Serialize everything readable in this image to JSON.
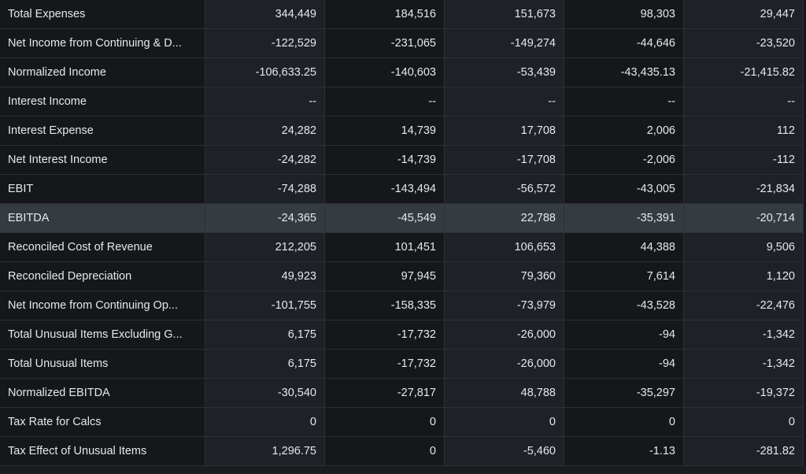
{
  "highlight_color": "#353c41",
  "rows": [
    {
      "label": "Total Expenses",
      "values": [
        "344,449",
        "184,516",
        "151,673",
        "98,303",
        "29,447"
      ]
    },
    {
      "label": "Net Income from Continuing & D...",
      "values": [
        "-122,529",
        "-231,065",
        "-149,274",
        "-44,646",
        "-23,520"
      ]
    },
    {
      "label": "Normalized Income",
      "values": [
        "-106,633.25",
        "-140,603",
        "-53,439",
        "-43,435.13",
        "-21,415.82"
      ]
    },
    {
      "label": "Interest Income",
      "values": [
        "--",
        "--",
        "--",
        "--",
        "--"
      ]
    },
    {
      "label": "Interest Expense",
      "values": [
        "24,282",
        "14,739",
        "17,708",
        "2,006",
        "112"
      ]
    },
    {
      "label": "Net Interest Income",
      "values": [
        "-24,282",
        "-14,739",
        "-17,708",
        "-2,006",
        "-112"
      ]
    },
    {
      "label": "EBIT",
      "values": [
        "-74,288",
        "-143,494",
        "-56,572",
        "-43,005",
        "-21,834"
      ]
    },
    {
      "label": "EBITDA",
      "values": [
        "-24,365",
        "-45,549",
        "22,788",
        "-35,391",
        "-20,714"
      ],
      "highlighted": true
    },
    {
      "label": "Reconciled Cost of Revenue",
      "values": [
        "212,205",
        "101,451",
        "106,653",
        "44,388",
        "9,506"
      ]
    },
    {
      "label": "Reconciled Depreciation",
      "values": [
        "49,923",
        "97,945",
        "79,360",
        "7,614",
        "1,120"
      ]
    },
    {
      "label": "Net Income from Continuing Op...",
      "values": [
        "-101,755",
        "-158,335",
        "-73,979",
        "-43,528",
        "-22,476"
      ]
    },
    {
      "label": "Total Unusual Items Excluding G...",
      "values": [
        "6,175",
        "-17,732",
        "-26,000",
        "-94",
        "-1,342"
      ]
    },
    {
      "label": "Total Unusual Items",
      "values": [
        "6,175",
        "-17,732",
        "-26,000",
        "-94",
        "-1,342"
      ]
    },
    {
      "label": "Normalized EBITDA",
      "values": [
        "-30,540",
        "-27,817",
        "48,788",
        "-35,297",
        "-19,372"
      ]
    },
    {
      "label": "Tax Rate for Calcs",
      "values": [
        "0",
        "0",
        "0",
        "0",
        "0"
      ]
    },
    {
      "label": "Tax Effect of Unusual Items",
      "values": [
        "1,296.75",
        "0",
        "-5,460",
        "-1.13",
        "-281.82"
      ]
    }
  ]
}
